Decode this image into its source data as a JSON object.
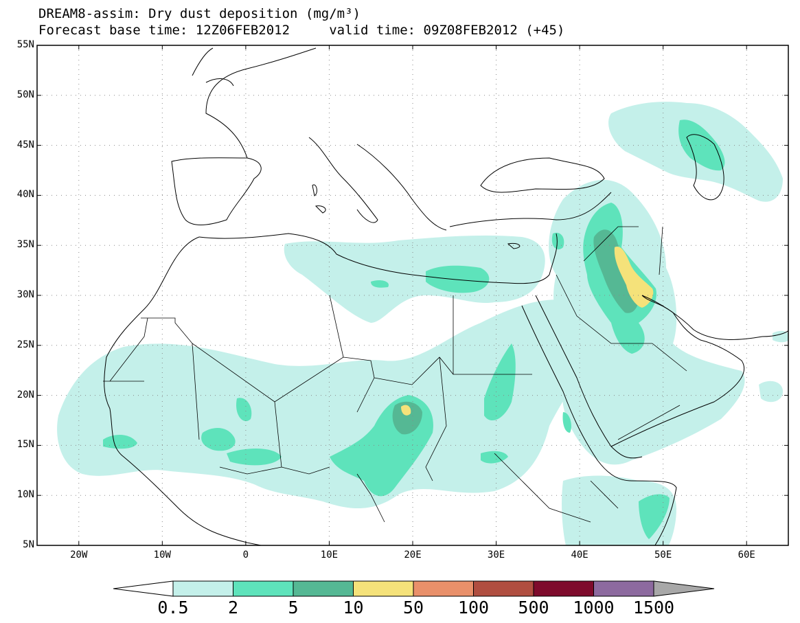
{
  "title": {
    "line1": "DREAM8-assim: Dry dust deposition (mg/m³)",
    "line2": "Forecast base time: 12Z06FEB2012     valid time: 09Z08FEB2012 (+45)"
  },
  "axes": {
    "lat_labels": [
      "55N",
      "50N",
      "45N",
      "40N",
      "35N",
      "30N",
      "25N",
      "20N",
      "15N",
      "10N",
      "5N"
    ],
    "lat_values": [
      55,
      50,
      45,
      40,
      35,
      30,
      25,
      20,
      15,
      10,
      5
    ],
    "lon_labels": [
      "20W",
      "10W",
      "0",
      "10E",
      "20E",
      "30E",
      "40E",
      "50E",
      "60E"
    ],
    "lon_values": [
      -20,
      -10,
      0,
      10,
      20,
      30,
      40,
      50,
      60
    ],
    "lon_range": [
      -25,
      65
    ],
    "lat_range": [
      5,
      55
    ]
  },
  "colorbar": {
    "labels": [
      "0.5",
      "2",
      "5",
      "10",
      "50",
      "100",
      "500",
      "1000",
      "1500"
    ],
    "colors": [
      "#c4f0ea",
      "#5ee3bb",
      "#55b894",
      "#f5e27a",
      "#e9906a",
      "#b04e40",
      "#7e0b2c",
      "#8d6a9f",
      "#a8a8a8"
    ]
  },
  "colors": {
    "background": "#ffffff",
    "frame": "#000000",
    "coastline": "#000000"
  }
}
